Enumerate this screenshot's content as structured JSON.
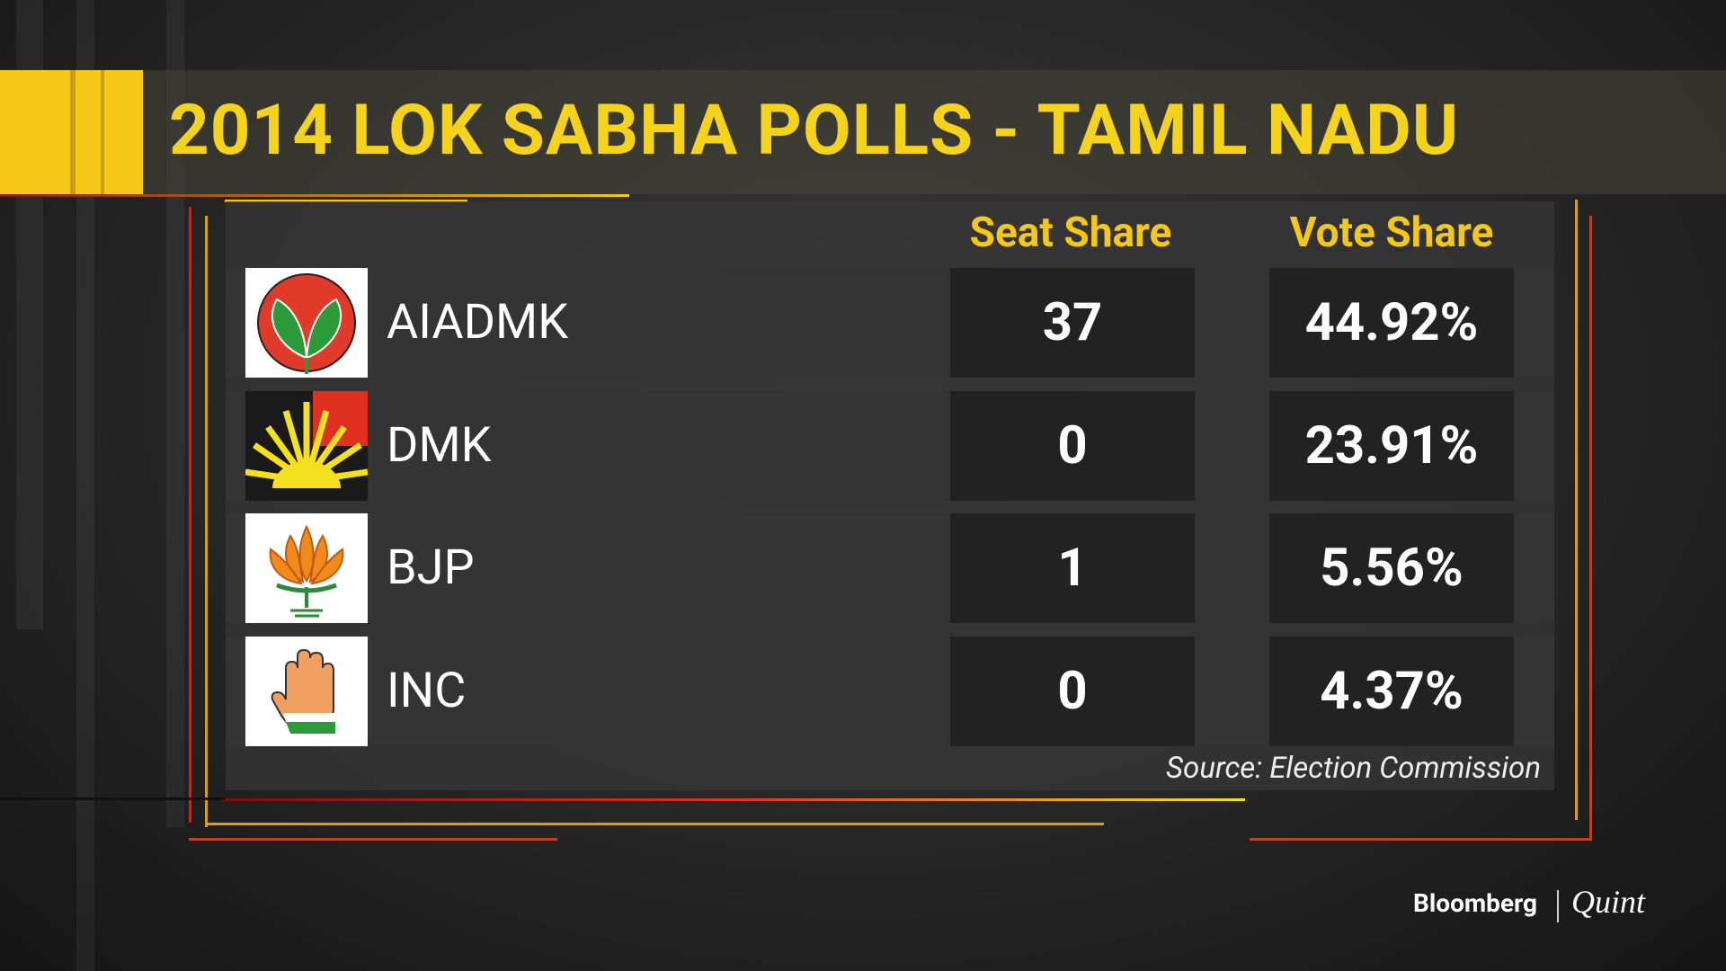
{
  "header": {
    "title": "2014 LOK SABHA POLLS - TAMIL NADU"
  },
  "table": {
    "columns": [
      "Seat Share",
      "Vote Share"
    ],
    "rows": [
      {
        "party": "AIADMK",
        "seats": 37,
        "vote_share": "44.92%"
      },
      {
        "party": "DMK",
        "seats": 0,
        "vote_share": "23.91%"
      },
      {
        "party": "BJP",
        "seats": 1,
        "vote_share": "5.56%"
      },
      {
        "party": "INC",
        "seats": 0,
        "vote_share": "4.37%"
      }
    ],
    "source": "Source: Election Commission"
  },
  "branding": {
    "left": "Bloomberg",
    "right": "Quint"
  }
}
